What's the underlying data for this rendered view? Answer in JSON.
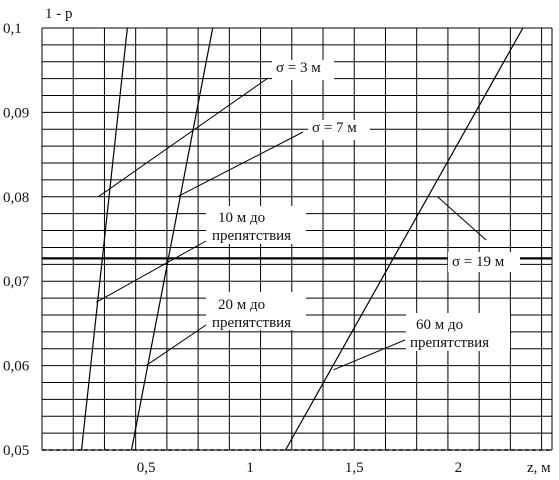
{
  "chart_data": {
    "type": "line",
    "xlabel": "z, м",
    "ylabel": "1 - p",
    "xlim": [
      0,
      2.45
    ],
    "ylim": [
      0.05,
      0.1
    ],
    "x_ticks": [
      {
        "value": 0.5,
        "label": "0,5"
      },
      {
        "value": 1.0,
        "label": "1"
      },
      {
        "value": 1.5,
        "label": "1,5"
      },
      {
        "value": 2.0,
        "label": "2"
      }
    ],
    "y_ticks": [
      {
        "value": 0.05,
        "label": "0,05"
      },
      {
        "value": 0.06,
        "label": "0,06"
      },
      {
        "value": 0.07,
        "label": "0,07"
      },
      {
        "value": 0.08,
        "label": "0,08"
      },
      {
        "value": 0.09,
        "label": "0,09"
      },
      {
        "value": 0.1,
        "label": "0,1"
      }
    ],
    "grid": true,
    "series": [
      {
        "name": "10 м до препятствия",
        "x": [
          0.19,
          0.41
        ],
        "y": [
          0.05,
          0.1
        ]
      },
      {
        "name": "20 м до препятствия",
        "x": [
          0.43,
          0.82
        ],
        "y": [
          0.05,
          0.1
        ]
      },
      {
        "name": "60 м до препятствия",
        "x": [
          1.17,
          2.31
        ],
        "y": [
          0.05,
          0.1
        ]
      }
    ],
    "hline": {
      "y": 0.0727,
      "label": "σ = 19 м"
    },
    "annotations": [
      {
        "id": "sigma3",
        "text": "σ = 3 м",
        "tip": {
          "x": 0.27,
          "y": 0.08
        }
      },
      {
        "id": "sigma7",
        "text": "σ = 7 м",
        "tip": {
          "x": 0.65,
          "y": 0.08
        }
      },
      {
        "id": "sigma19",
        "text": "σ = 19 м",
        "tip": {
          "x": 1.9,
          "y": 0.08
        }
      },
      {
        "id": "d10",
        "text": [
          "10 м до",
          "препятствия"
        ],
        "tip": {
          "x": 0.26,
          "y": 0.0675
        }
      },
      {
        "id": "d20",
        "text": [
          "20 м до",
          "препятствия"
        ],
        "tip": {
          "x": 0.5,
          "y": 0.06
        }
      },
      {
        "id": "d60",
        "text": [
          "60 м до",
          "препятствия"
        ],
        "tip": {
          "x": 1.4,
          "y": 0.0595
        }
      }
    ]
  }
}
